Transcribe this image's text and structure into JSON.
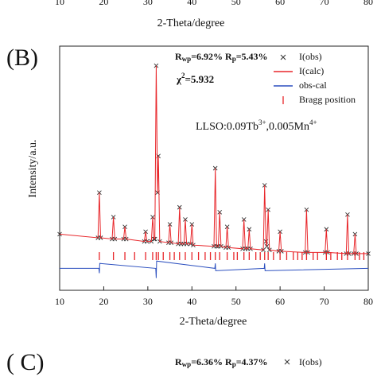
{
  "chart_data": {
    "type": "line",
    "panel_label": "(B)",
    "xlabel": "2-Theta/degree",
    "ylabel": "Intensity/a.u.",
    "fit_text": {
      "r": "R",
      "wp": "wp",
      "mid": "=6.92% R",
      "p": "p",
      "end": "=5.43%"
    },
    "chi_text": {
      "chi": "χ",
      "sup": "2",
      "val": "=5.932"
    },
    "sample_text": {
      "a": "LLSO:0.09Tb",
      "b": "3+",
      "c": ",0.005Mn",
      "d": "4+"
    },
    "xlim": [
      10,
      80
    ],
    "xticks": [
      10,
      20,
      30,
      40,
      50,
      60,
      70,
      80
    ],
    "ylim": [
      0,
      100
    ],
    "series": [
      {
        "name": "I(obs)",
        "color": "#333333",
        "x": [
          10,
          18.7,
          19.0,
          19.3,
          21.9,
          22.2,
          22.5,
          24.5,
          24.8,
          25.1,
          29.2,
          29.5,
          29.8,
          30.8,
          31.1,
          31.4,
          31.6,
          31.9,
          32.2,
          32.4,
          32.7,
          34.7,
          35.0,
          35.3,
          36.9,
          37.2,
          37.5,
          38.2,
          38.5,
          38.8,
          39.7,
          40.0,
          40.3,
          45.0,
          45.3,
          45.6,
          46.0,
          46.3,
          46.6,
          47.7,
          48.0,
          48.3,
          51.5,
          51.8,
          52.1,
          52.7,
          53.0,
          53.3,
          56.2,
          56.5,
          56.8,
          57.0,
          57.3,
          57.6,
          59.7,
          60.0,
          60.3,
          65.7,
          66.0,
          66.3,
          70.2,
          70.5,
          70.8,
          75.0,
          75.3,
          75.6,
          76.7,
          77.0,
          77.3,
          80
        ],
        "values": [
          23,
          21.5,
          40,
          21.5,
          21,
          30,
          21,
          21,
          26,
          21,
          20,
          24,
          20,
          20,
          30,
          21,
          21,
          92,
          40,
          55,
          20,
          19.5,
          27,
          19.5,
          19,
          34,
          19,
          19,
          29,
          19,
          19,
          27,
          18.5,
          18,
          50,
          18,
          18,
          32,
          18,
          17.5,
          26,
          17.5,
          17,
          29,
          17,
          17,
          25,
          17,
          16.5,
          43,
          20,
          18,
          33,
          16.5,
          16,
          24,
          16,
          15.5,
          33,
          15.5,
          15.5,
          25,
          15.5,
          15,
          31,
          15,
          15,
          23,
          15,
          15
        ]
      },
      {
        "name": "I(calc)",
        "color": "#e8262a",
        "x": [
          10,
          18.7,
          19.0,
          19.3,
          21.9,
          22.2,
          22.5,
          24.5,
          24.8,
          25.1,
          29.2,
          29.5,
          29.8,
          30.8,
          31.1,
          31.4,
          31.6,
          31.9,
          32.2,
          32.4,
          32.7,
          34.7,
          35.0,
          35.3,
          36.9,
          37.2,
          37.5,
          38.2,
          38.5,
          38.8,
          39.7,
          40.0,
          40.3,
          45.0,
          45.3,
          45.6,
          46.0,
          46.3,
          46.6,
          47.7,
          48.0,
          48.3,
          51.5,
          51.8,
          52.1,
          52.7,
          53.0,
          53.3,
          56.2,
          56.5,
          56.8,
          57.0,
          57.3,
          57.6,
          59.7,
          60.0,
          60.3,
          65.7,
          66.0,
          66.3,
          70.2,
          70.5,
          70.8,
          75.0,
          75.3,
          75.6,
          76.7,
          77.0,
          77.3,
          80
        ],
        "values": [
          23,
          21.5,
          40,
          21.5,
          21,
          30,
          21,
          21,
          26,
          21,
          20,
          24,
          20,
          20,
          30,
          21,
          21,
          92,
          40,
          55,
          20,
          19.5,
          27,
          19.5,
          19,
          34,
          19,
          19,
          29,
          19,
          19,
          27,
          18.5,
          18,
          50,
          18,
          18,
          32,
          18,
          17.5,
          26,
          17.5,
          17,
          29,
          17,
          17,
          25,
          17,
          16.5,
          43,
          20,
          18,
          33,
          16.5,
          16,
          24,
          16,
          15.5,
          33,
          15.5,
          15.5,
          25,
          15.5,
          15,
          31,
          15,
          15,
          23,
          15,
          15
        ]
      },
      {
        "name": "obs-cal",
        "color": "#2b4fbf",
        "x": [
          10,
          18.9,
          19.0,
          19.1,
          31.8,
          31.9,
          32.0,
          45.2,
          45.3,
          45.4,
          56.4,
          56.5,
          56.6,
          80
        ],
        "values": [
          9,
          9,
          7,
          11,
          9,
          5,
          12,
          9,
          11,
          8,
          9,
          11,
          8,
          9
        ]
      },
      {
        "name": "Bragg position",
        "color": "#e8262a",
        "x": [
          19,
          22.2,
          24.8,
          27,
          29.5,
          31.1,
          31.9,
          32.4,
          33.5,
          35,
          36,
          37.2,
          38.5,
          40,
          41.5,
          43,
          44.2,
          45.3,
          46.3,
          48,
          49.5,
          50.3,
          51.8,
          53,
          54.5,
          55.5,
          56.5,
          57.3,
          58.5,
          60,
          61.5,
          63,
          64,
          65,
          66,
          67.5,
          68.5,
          70.5,
          71.5,
          73,
          74,
          75.3,
          77,
          78,
          79
        ]
      }
    ],
    "panel_a": {
      "xticks": [
        10,
        20,
        30,
        40,
        50,
        60,
        70,
        80
      ],
      "xlabel": "2-Theta/degree"
    },
    "panel_c": {
      "label": "( C)",
      "r": "R",
      "wp": "wp",
      "mid": "=6.36% R",
      "p": "p",
      "end": "=4.37%",
      "legend": "I(obs)"
    }
  }
}
